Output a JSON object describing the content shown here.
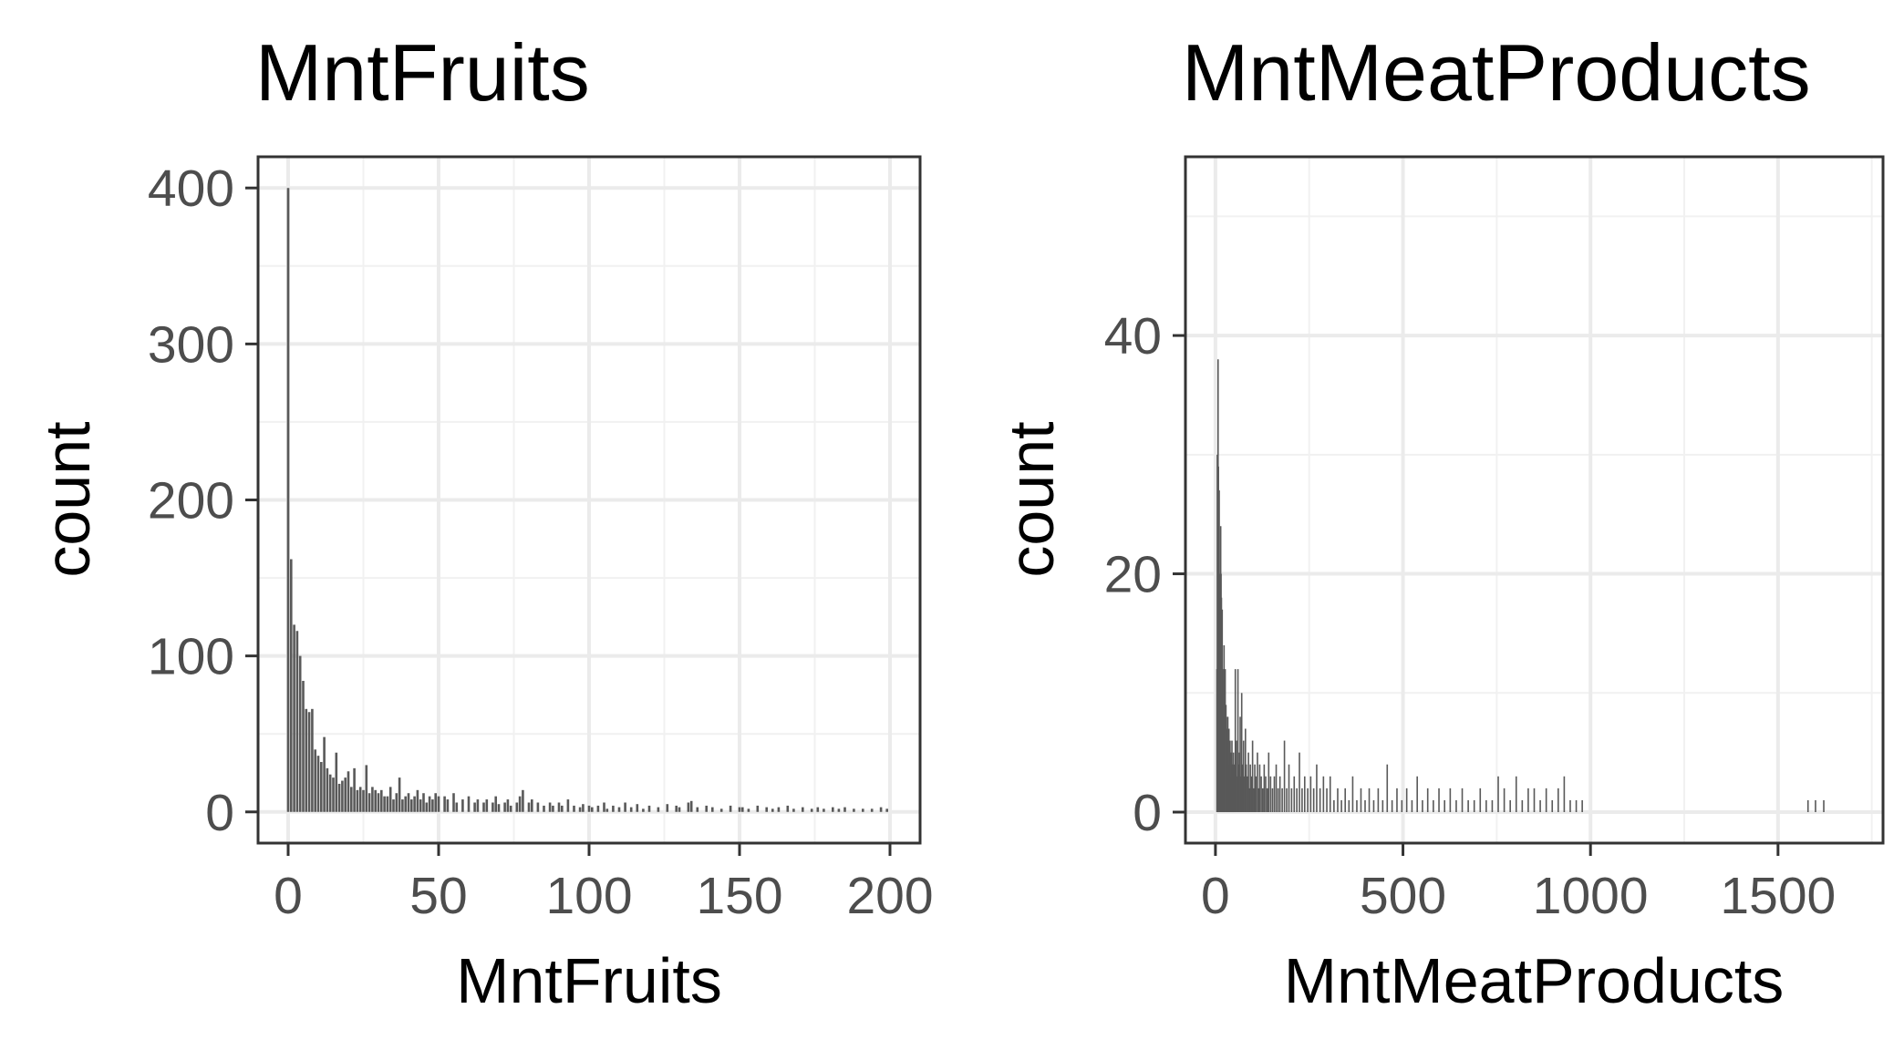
{
  "chart_data": [
    {
      "type": "bar",
      "title": "MntFruits",
      "xlabel": "MntFruits",
      "ylabel": "count",
      "xlim": [
        -10,
        210
      ],
      "ylim": [
        -20,
        420
      ],
      "xticks": [
        0,
        50,
        100,
        150,
        200
      ],
      "yticks": [
        0,
        100,
        200,
        300,
        400
      ],
      "grid": true,
      "bar_color": "#595959",
      "points": [
        [
          0,
          400
        ],
        [
          1,
          162
        ],
        [
          2,
          120
        ],
        [
          3,
          116
        ],
        [
          4,
          100
        ],
        [
          5,
          84
        ],
        [
          6,
          66
        ],
        [
          7,
          64
        ],
        [
          8,
          66
        ],
        [
          9,
          40
        ],
        [
          10,
          36
        ],
        [
          11,
          32
        ],
        [
          12,
          48
        ],
        [
          13,
          28
        ],
        [
          14,
          24
        ],
        [
          15,
          22
        ],
        [
          16,
          38
        ],
        [
          17,
          18
        ],
        [
          18,
          20
        ],
        [
          19,
          22
        ],
        [
          20,
          26
        ],
        [
          21,
          16
        ],
        [
          22,
          28
        ],
        [
          23,
          14
        ],
        [
          24,
          16
        ],
        [
          25,
          14
        ],
        [
          26,
          30
        ],
        [
          27,
          12
        ],
        [
          28,
          16
        ],
        [
          29,
          14
        ],
        [
          30,
          12
        ],
        [
          31,
          14
        ],
        [
          32,
          10
        ],
        [
          33,
          10
        ],
        [
          34,
          16
        ],
        [
          35,
          8
        ],
        [
          36,
          12
        ],
        [
          37,
          22
        ],
        [
          38,
          8
        ],
        [
          39,
          10
        ],
        [
          40,
          12
        ],
        [
          41,
          8
        ],
        [
          42,
          10
        ],
        [
          43,
          14
        ],
        [
          44,
          8
        ],
        [
          45,
          12
        ],
        [
          46,
          6
        ],
        [
          47,
          10
        ],
        [
          48,
          8
        ],
        [
          49,
          12
        ],
        [
          50,
          10
        ],
        [
          52,
          10
        ],
        [
          53,
          8
        ],
        [
          55,
          12
        ],
        [
          56,
          6
        ],
        [
          58,
          8
        ],
        [
          60,
          10
        ],
        [
          62,
          6
        ],
        [
          63,
          8
        ],
        [
          65,
          6
        ],
        [
          66,
          8
        ],
        [
          68,
          6
        ],
        [
          69,
          10
        ],
        [
          70,
          5
        ],
        [
          72,
          6
        ],
        [
          73,
          8
        ],
        [
          74,
          4
        ],
        [
          76,
          6
        ],
        [
          77,
          10
        ],
        [
          78,
          14
        ],
        [
          80,
          6
        ],
        [
          81,
          8
        ],
        [
          83,
          6
        ],
        [
          85,
          4
        ],
        [
          87,
          6
        ],
        [
          88,
          4
        ],
        [
          90,
          6
        ],
        [
          91,
          4
        ],
        [
          93,
          8
        ],
        [
          95,
          4
        ],
        [
          97,
          3
        ],
        [
          98,
          5
        ],
        [
          100,
          4
        ],
        [
          101,
          3
        ],
        [
          103,
          4
        ],
        [
          105,
          6
        ],
        [
          106,
          2
        ],
        [
          108,
          4
        ],
        [
          110,
          3
        ],
        [
          112,
          6
        ],
        [
          114,
          3
        ],
        [
          116,
          5
        ],
        [
          118,
          2
        ],
        [
          120,
          4
        ],
        [
          123,
          3
        ],
        [
          126,
          5
        ],
        [
          129,
          4
        ],
        [
          130,
          3
        ],
        [
          133,
          6
        ],
        [
          134,
          7
        ],
        [
          136,
          3
        ],
        [
          139,
          4
        ],
        [
          141,
          3
        ],
        [
          144,
          2
        ],
        [
          147,
          4
        ],
        [
          150,
          3
        ],
        [
          151,
          3
        ],
        [
          153,
          2
        ],
        [
          156,
          4
        ],
        [
          159,
          3
        ],
        [
          161,
          2
        ],
        [
          163,
          3
        ],
        [
          166,
          4
        ],
        [
          168,
          2
        ],
        [
          171,
          3
        ],
        [
          174,
          2
        ],
        [
          176,
          3
        ],
        [
          178,
          2
        ],
        [
          181,
          3
        ],
        [
          183,
          2
        ],
        [
          185,
          3
        ],
        [
          188,
          2
        ],
        [
          191,
          2
        ],
        [
          194,
          2
        ],
        [
          197,
          3
        ],
        [
          199,
          2
        ]
      ]
    },
    {
      "type": "bar",
      "title": "MntMeatProducts",
      "xlabel": "MntMeatProducts",
      "ylabel": "count",
      "xlim": [
        -80,
        1780
      ],
      "ylim": [
        -2.6,
        55
      ],
      "xticks": [
        0,
        500,
        1000,
        1500
      ],
      "yticks": [
        0,
        20,
        40
      ],
      "grid": true,
      "bar_color": "#595959",
      "points": [
        [
          4,
          12
        ],
        [
          5,
          30
        ],
        [
          6,
          22
        ],
        [
          7,
          38
        ],
        [
          8,
          29
        ],
        [
          9,
          16
        ],
        [
          10,
          27
        ],
        [
          11,
          20
        ],
        [
          12,
          18
        ],
        [
          13,
          14
        ],
        [
          14,
          24
        ],
        [
          15,
          20
        ],
        [
          16,
          18
        ],
        [
          17,
          14
        ],
        [
          18,
          17
        ],
        [
          19,
          10
        ],
        [
          20,
          12
        ],
        [
          21,
          11
        ],
        [
          22,
          9
        ],
        [
          23,
          14
        ],
        [
          24,
          8
        ],
        [
          25,
          10
        ],
        [
          26,
          12
        ],
        [
          27,
          7
        ],
        [
          28,
          9
        ],
        [
          29,
          8
        ],
        [
          30,
          6
        ],
        [
          31,
          7
        ],
        [
          32,
          6
        ],
        [
          33,
          8
        ],
        [
          34,
          5
        ],
        [
          35,
          6
        ],
        [
          36,
          7
        ],
        [
          37,
          5
        ],
        [
          38,
          4
        ],
        [
          39,
          6
        ],
        [
          40,
          5
        ],
        [
          41,
          4
        ],
        [
          42,
          5
        ],
        [
          43,
          3
        ],
        [
          44,
          6
        ],
        [
          45,
          4
        ],
        [
          46,
          3
        ],
        [
          47,
          4
        ],
        [
          48,
          5
        ],
        [
          49,
          3
        ],
        [
          50,
          4
        ],
        [
          52,
          3
        ],
        [
          53,
          12
        ],
        [
          54,
          4
        ],
        [
          56,
          6
        ],
        [
          58,
          3
        ],
        [
          60,
          12
        ],
        [
          62,
          4
        ],
        [
          64,
          5
        ],
        [
          66,
          8
        ],
        [
          68,
          3
        ],
        [
          70,
          10
        ],
        [
          72,
          4
        ],
        [
          75,
          6
        ],
        [
          77,
          3
        ],
        [
          80,
          7
        ],
        [
          82,
          4
        ],
        [
          85,
          3
        ],
        [
          88,
          5
        ],
        [
          90,
          2
        ],
        [
          93,
          4
        ],
        [
          96,
          3
        ],
        [
          99,
          6
        ],
        [
          102,
          2
        ],
        [
          105,
          4
        ],
        [
          108,
          3
        ],
        [
          112,
          5
        ],
        [
          115,
          2
        ],
        [
          118,
          4
        ],
        [
          122,
          3
        ],
        [
          126,
          2
        ],
        [
          130,
          4
        ],
        [
          134,
          3
        ],
        [
          138,
          2
        ],
        [
          142,
          5
        ],
        [
          147,
          3
        ],
        [
          152,
          2
        ],
        [
          157,
          3
        ],
        [
          162,
          4
        ],
        [
          167,
          2
        ],
        [
          172,
          3
        ],
        [
          178,
          2
        ],
        [
          184,
          6
        ],
        [
          190,
          2
        ],
        [
          196,
          4
        ],
        [
          203,
          2
        ],
        [
          210,
          3
        ],
        [
          217,
          2
        ],
        [
          224,
          5
        ],
        [
          231,
          2
        ],
        [
          238,
          3
        ],
        [
          246,
          2
        ],
        [
          254,
          3
        ],
        [
          262,
          2
        ],
        [
          270,
          4
        ],
        [
          279,
          2
        ],
        [
          288,
          3
        ],
        [
          297,
          2
        ],
        [
          306,
          3
        ],
        [
          316,
          1
        ],
        [
          326,
          2
        ],
        [
          336,
          1
        ],
        [
          346,
          2
        ],
        [
          356,
          1
        ],
        [
          366,
          3
        ],
        [
          377,
          1
        ],
        [
          388,
          2
        ],
        [
          399,
          1
        ],
        [
          410,
          2
        ],
        [
          422,
          1
        ],
        [
          434,
          2
        ],
        [
          446,
          1
        ],
        [
          458,
          4
        ],
        [
          471,
          1
        ],
        [
          484,
          2
        ],
        [
          497,
          1
        ],
        [
          510,
          2
        ],
        [
          524,
          1
        ],
        [
          538,
          3
        ],
        [
          552,
          1
        ],
        [
          566,
          2
        ],
        [
          581,
          1
        ],
        [
          596,
          2
        ],
        [
          611,
          1
        ],
        [
          626,
          2
        ],
        [
          642,
          1
        ],
        [
          658,
          2
        ],
        [
          674,
          1
        ],
        [
          690,
          1
        ],
        [
          706,
          2
        ],
        [
          722,
          1
        ],
        [
          738,
          1
        ],
        [
          754,
          3
        ],
        [
          770,
          2
        ],
        [
          786,
          1
        ],
        [
          802,
          3
        ],
        [
          818,
          1
        ],
        [
          834,
          2
        ],
        [
          850,
          2
        ],
        [
          866,
          1
        ],
        [
          882,
          2
        ],
        [
          898,
          1
        ],
        [
          914,
          2
        ],
        [
          930,
          3
        ],
        [
          946,
          1
        ],
        [
          962,
          1
        ],
        [
          978,
          1
        ],
        [
          1580,
          1
        ],
        [
          1600,
          1
        ],
        [
          1622,
          1
        ]
      ]
    }
  ]
}
